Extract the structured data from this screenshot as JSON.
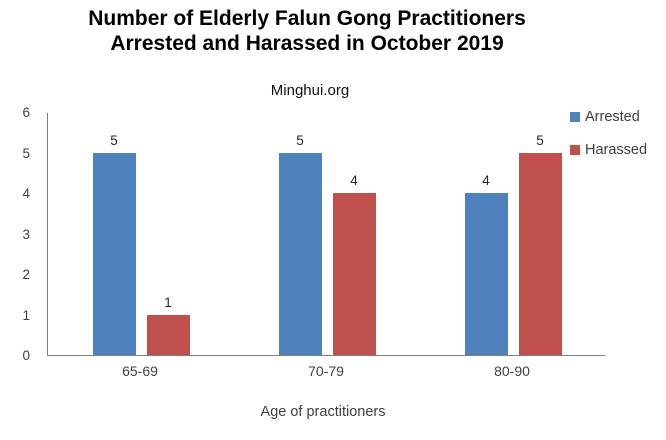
{
  "title": {
    "line1": "Number of Elderly Falun Gong Practitioners",
    "line2": "Arrested and Harassed in October 2019"
  },
  "subtitle": "Minghui.org",
  "x_axis_title": "Age of practitioners",
  "chart_data": {
    "type": "bar",
    "title": "Number of Elderly Falun Gong Practitioners Arrested and Harassed in October 2019",
    "subtitle": "Minghui.org",
    "categories": [
      "65-69",
      "70-79",
      "80-90"
    ],
    "series": [
      {
        "name": "Arrested",
        "color": "#4F81BD",
        "values": [
          5,
          5,
          4
        ]
      },
      {
        "name": "Harassed",
        "color": "#C0504D",
        "values": [
          1,
          4,
          5
        ]
      }
    ],
    "xlabel": "Age of practitioners",
    "ylabel": "",
    "ylim": [
      0,
      6
    ],
    "yticks": [
      0,
      1,
      2,
      3,
      4,
      5,
      6
    ],
    "grid": false,
    "data_labels": true,
    "legend_position": "top-right"
  },
  "colors": {
    "arrested": "#4F81BD",
    "harassed": "#C0504D",
    "axis_line": "#7f7f7f",
    "tick_text": "#3f3f3f",
    "title_text": "#000000"
  }
}
